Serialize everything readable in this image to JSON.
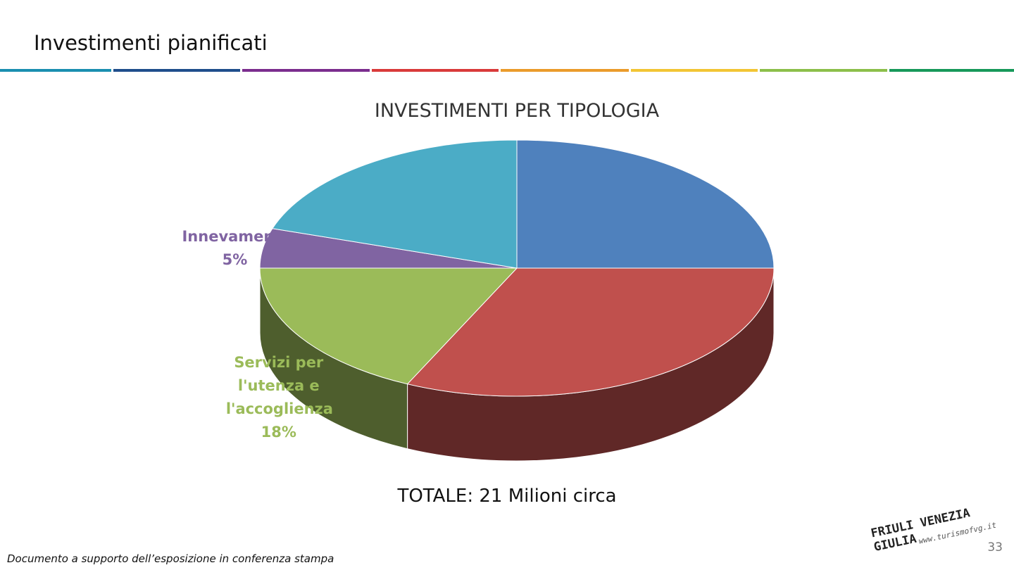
{
  "page": {
    "title": "Investimenti pianificati",
    "total": "TOTALE: 21 Milioni circa",
    "footer": "Documento a supporto dell’esposizione in conferenza stampa",
    "page_number": "33",
    "logo": "FRIULI VENEZIA GIULIA",
    "logo_url": "www.turismofvg.it"
  },
  "chart_data": {
    "type": "pie",
    "title": "INVESTIMENTI PER TIPOLOGIA",
    "categories": [
      null,
      null,
      "Servizi per l'utenza e l'accoglienza",
      "Innevamento",
      null
    ],
    "values": [
      25,
      32,
      18,
      5,
      20
    ],
    "value_labels": [
      null,
      null,
      "18%",
      "5%",
      null
    ],
    "colors": [
      "#4f81bd",
      "#c0504d",
      "#9bbb59",
      "#8064a2",
      "#4bacc6"
    ],
    "start_angle": 0,
    "direction": "clockwise",
    "three_d": true
  }
}
